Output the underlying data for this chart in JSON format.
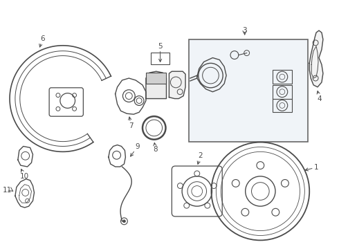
{
  "background_color": "#ffffff",
  "line_color": "#4a4a4a",
  "box_bg_color": "#f0f4f8",
  "box_border_color": "#666666",
  "fig_width": 4.9,
  "fig_height": 3.6,
  "dpi": 100,
  "label_fontsize": 7.5
}
